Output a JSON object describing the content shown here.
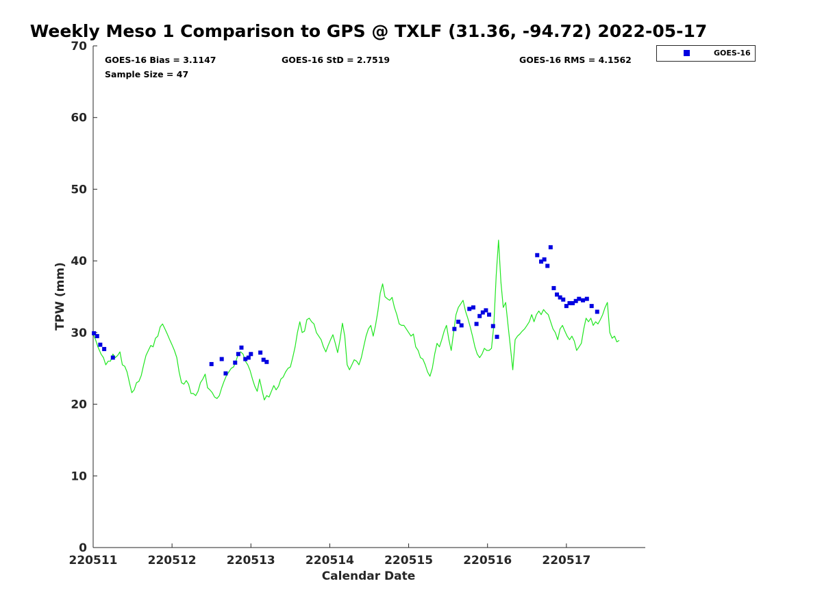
{
  "chart_data": {
    "type": "scatter",
    "title": "Weekly Meso 1 Comparison to GPS @ TXLF (31.36, -94.72) 2022-05-17",
    "xlabel": "Calendar Date",
    "ylabel": "TPW (mm)",
    "xlim": [
      0,
      7
    ],
    "ylim": [
      0,
      70
    ],
    "x_ticks": [
      {
        "value": 0,
        "label": "220511"
      },
      {
        "value": 1,
        "label": "220512"
      },
      {
        "value": 2,
        "label": "220513"
      },
      {
        "value": 3,
        "label": "220514"
      },
      {
        "value": 4,
        "label": "220515"
      },
      {
        "value": 5,
        "label": "220516"
      },
      {
        "value": 6,
        "label": "220517"
      }
    ],
    "y_ticks": [
      0,
      10,
      20,
      30,
      40,
      50,
      60,
      70
    ],
    "stats": {
      "bias": "GOES-16 Bias = 3.1147",
      "std": "GOES-16 StD = 2.7519",
      "rms": "GOES-16 RMS = 4.1562",
      "sample": "Sample Size = 47"
    },
    "legend": {
      "location": "top-right outside",
      "entries": [
        {
          "name": "GOES-16",
          "color": "#0000e0",
          "marker": "square"
        }
      ]
    },
    "colors": {
      "gps_line": "#1ee61e",
      "goes_marker": "#0000e0"
    },
    "series": [
      {
        "name": "GPS",
        "kind": "line",
        "points": [
          [
            0.0,
            29.8
          ],
          [
            0.03,
            29.0
          ],
          [
            0.06,
            28.0
          ],
          [
            0.1,
            27.0
          ],
          [
            0.13,
            26.5
          ],
          [
            0.16,
            25.5
          ],
          [
            0.19,
            26.0
          ],
          [
            0.22,
            26.0
          ],
          [
            0.25,
            27.0
          ],
          [
            0.28,
            26.5
          ],
          [
            0.31,
            26.8
          ],
          [
            0.34,
            27.3
          ],
          [
            0.37,
            25.5
          ],
          [
            0.4,
            25.3
          ],
          [
            0.43,
            24.5
          ],
          [
            0.46,
            23.0
          ],
          [
            0.49,
            21.6
          ],
          [
            0.52,
            22.0
          ],
          [
            0.55,
            23.0
          ],
          [
            0.58,
            23.2
          ],
          [
            0.61,
            24.0
          ],
          [
            0.64,
            25.5
          ],
          [
            0.67,
            26.8
          ],
          [
            0.7,
            27.5
          ],
          [
            0.73,
            28.2
          ],
          [
            0.76,
            28.0
          ],
          [
            0.79,
            29.2
          ],
          [
            0.82,
            29.5
          ],
          [
            0.85,
            30.8
          ],
          [
            0.88,
            31.2
          ],
          [
            0.91,
            30.5
          ],
          [
            0.94,
            29.8
          ],
          [
            0.97,
            29.0
          ],
          [
            1.0,
            28.3
          ],
          [
            1.03,
            27.5
          ],
          [
            1.06,
            26.5
          ],
          [
            1.09,
            24.5
          ],
          [
            1.12,
            23.0
          ],
          [
            1.15,
            22.8
          ],
          [
            1.18,
            23.3
          ],
          [
            1.21,
            22.8
          ],
          [
            1.24,
            21.5
          ],
          [
            1.27,
            21.5
          ],
          [
            1.3,
            21.2
          ],
          [
            1.33,
            21.8
          ],
          [
            1.36,
            23.0
          ],
          [
            1.39,
            23.5
          ],
          [
            1.42,
            24.2
          ],
          [
            1.45,
            22.3
          ],
          [
            1.48,
            22.0
          ],
          [
            1.51,
            21.6
          ],
          [
            1.54,
            21.0
          ],
          [
            1.57,
            20.8
          ],
          [
            1.6,
            21.2
          ],
          [
            1.63,
            22.3
          ],
          [
            1.66,
            23.2
          ],
          [
            1.69,
            24.0
          ],
          [
            1.72,
            24.5
          ],
          [
            1.75,
            25.0
          ],
          [
            1.78,
            25.2
          ],
          [
            1.81,
            26.0
          ],
          [
            1.84,
            27.0
          ],
          [
            1.87,
            27.3
          ],
          [
            1.9,
            27.0
          ],
          [
            1.93,
            26.0
          ],
          [
            1.96,
            25.5
          ],
          [
            1.99,
            24.7
          ],
          [
            2.02,
            23.5
          ],
          [
            2.05,
            22.5
          ],
          [
            2.08,
            21.8
          ],
          [
            2.11,
            23.5
          ],
          [
            2.14,
            22.0
          ],
          [
            2.17,
            20.6
          ],
          [
            2.2,
            21.2
          ],
          [
            2.23,
            21.0
          ],
          [
            2.26,
            21.8
          ],
          [
            2.29,
            22.6
          ],
          [
            2.32,
            22.0
          ],
          [
            2.35,
            22.5
          ],
          [
            2.38,
            23.5
          ],
          [
            2.41,
            23.8
          ],
          [
            2.44,
            24.5
          ],
          [
            2.47,
            25.0
          ],
          [
            2.5,
            25.2
          ],
          [
            2.53,
            26.5
          ],
          [
            2.56,
            28.0
          ],
          [
            2.59,
            30.0
          ],
          [
            2.62,
            31.5
          ],
          [
            2.65,
            30.0
          ],
          [
            2.68,
            30.2
          ],
          [
            2.71,
            31.8
          ],
          [
            2.74,
            32.0
          ],
          [
            2.77,
            31.5
          ],
          [
            2.8,
            31.2
          ],
          [
            2.83,
            30.0
          ],
          [
            2.86,
            29.5
          ],
          [
            2.89,
            29.0
          ],
          [
            2.92,
            28.0
          ],
          [
            2.95,
            27.3
          ],
          [
            2.98,
            28.2
          ],
          [
            3.01,
            29.0
          ],
          [
            3.04,
            29.7
          ],
          [
            3.07,
            28.5
          ],
          [
            3.1,
            27.2
          ],
          [
            3.13,
            29.0
          ],
          [
            3.16,
            31.3
          ],
          [
            3.19,
            29.5
          ],
          [
            3.22,
            25.5
          ],
          [
            3.25,
            24.8
          ],
          [
            3.28,
            25.5
          ],
          [
            3.31,
            26.2
          ],
          [
            3.34,
            26.0
          ],
          [
            3.37,
            25.5
          ],
          [
            3.4,
            26.5
          ],
          [
            3.43,
            28.0
          ],
          [
            3.46,
            29.5
          ],
          [
            3.49,
            30.5
          ],
          [
            3.52,
            31.0
          ],
          [
            3.55,
            29.5
          ],
          [
            3.58,
            31.0
          ],
          [
            3.61,
            33.0
          ],
          [
            3.64,
            35.5
          ],
          [
            3.67,
            36.8
          ],
          [
            3.7,
            35.0
          ],
          [
            3.73,
            34.7
          ],
          [
            3.76,
            34.5
          ],
          [
            3.79,
            34.9
          ],
          [
            3.82,
            33.5
          ],
          [
            3.85,
            32.5
          ],
          [
            3.88,
            31.2
          ],
          [
            3.91,
            31.0
          ],
          [
            3.94,
            31.0
          ],
          [
            3.97,
            30.5
          ],
          [
            4.0,
            30.0
          ],
          [
            4.03,
            29.5
          ],
          [
            4.06,
            29.8
          ],
          [
            4.09,
            28.0
          ],
          [
            4.12,
            27.5
          ],
          [
            4.15,
            26.5
          ],
          [
            4.18,
            26.3
          ],
          [
            4.21,
            25.5
          ],
          [
            4.24,
            24.5
          ],
          [
            4.27,
            23.9
          ],
          [
            4.3,
            25.0
          ],
          [
            4.33,
            27.0
          ],
          [
            4.36,
            28.5
          ],
          [
            4.39,
            28.0
          ],
          [
            4.42,
            29.0
          ],
          [
            4.45,
            30.2
          ],
          [
            4.48,
            31.0
          ],
          [
            4.51,
            29.0
          ],
          [
            4.54,
            27.5
          ],
          [
            4.57,
            30.0
          ],
          [
            4.6,
            32.5
          ],
          [
            4.63,
            33.5
          ],
          [
            4.66,
            34.0
          ],
          [
            4.69,
            34.5
          ],
          [
            4.72,
            33.0
          ],
          [
            4.75,
            32.0
          ],
          [
            4.78,
            30.8
          ],
          [
            4.81,
            29.5
          ],
          [
            4.84,
            28.0
          ],
          [
            4.87,
            27.0
          ],
          [
            4.9,
            26.5
          ],
          [
            4.93,
            27.0
          ],
          [
            4.96,
            27.8
          ],
          [
            4.99,
            27.5
          ],
          [
            5.02,
            27.5
          ],
          [
            5.05,
            27.8
          ],
          [
            5.08,
            31.0
          ],
          [
            5.11,
            38.0
          ],
          [
            5.14,
            42.9
          ],
          [
            5.17,
            37.0
          ],
          [
            5.2,
            33.5
          ],
          [
            5.23,
            34.2
          ],
          [
            5.26,
            31.0
          ],
          [
            5.29,
            28.0
          ],
          [
            5.32,
            24.8
          ],
          [
            5.35,
            29.0
          ],
          [
            5.38,
            29.5
          ],
          [
            5.41,
            29.8
          ],
          [
            5.44,
            30.2
          ],
          [
            5.47,
            30.5
          ],
          [
            5.5,
            31.0
          ],
          [
            5.53,
            31.5
          ],
          [
            5.56,
            32.5
          ],
          [
            5.59,
            31.5
          ],
          [
            5.62,
            32.5
          ],
          [
            5.65,
            33.0
          ],
          [
            5.68,
            32.5
          ],
          [
            5.71,
            33.2
          ],
          [
            5.74,
            32.8
          ],
          [
            5.77,
            32.5
          ],
          [
            5.8,
            31.5
          ],
          [
            5.83,
            30.5
          ],
          [
            5.86,
            30.0
          ],
          [
            5.89,
            29.0
          ],
          [
            5.92,
            30.5
          ],
          [
            5.95,
            31.0
          ],
          [
            5.98,
            30.2
          ],
          [
            6.01,
            29.5
          ],
          [
            6.04,
            29.0
          ],
          [
            6.07,
            29.5
          ],
          [
            6.1,
            28.8
          ],
          [
            6.13,
            27.5
          ],
          [
            6.16,
            28.0
          ],
          [
            6.19,
            28.5
          ],
          [
            6.22,
            30.5
          ],
          [
            6.25,
            32.0
          ],
          [
            6.28,
            31.5
          ],
          [
            6.31,
            32.0
          ],
          [
            6.34,
            31.0
          ],
          [
            6.37,
            31.5
          ],
          [
            6.4,
            31.2
          ],
          [
            6.43,
            31.8
          ],
          [
            6.46,
            32.5
          ],
          [
            6.49,
            33.5
          ],
          [
            6.52,
            34.2
          ],
          [
            6.55,
            30.0
          ],
          [
            6.58,
            29.2
          ],
          [
            6.61,
            29.5
          ],
          [
            6.64,
            28.7
          ],
          [
            6.67,
            28.9
          ]
        ]
      },
      {
        "name": "GOES-16",
        "kind": "markers",
        "points": [
          [
            0.01,
            29.9
          ],
          [
            0.05,
            29.5
          ],
          [
            0.09,
            28.3
          ],
          [
            0.14,
            27.7
          ],
          [
            0.25,
            26.5
          ],
          [
            1.5,
            25.6
          ],
          [
            1.63,
            26.3
          ],
          [
            1.68,
            24.3
          ],
          [
            1.8,
            25.8
          ],
          [
            1.84,
            27.0
          ],
          [
            1.88,
            27.9
          ],
          [
            1.93,
            26.3
          ],
          [
            1.97,
            26.5
          ],
          [
            2.0,
            27.0
          ],
          [
            2.12,
            27.2
          ],
          [
            2.16,
            26.2
          ],
          [
            2.2,
            25.9
          ],
          [
            4.58,
            30.5
          ],
          [
            4.63,
            31.5
          ],
          [
            4.67,
            31.0
          ],
          [
            4.77,
            33.3
          ],
          [
            4.82,
            33.5
          ],
          [
            4.86,
            31.2
          ],
          [
            4.9,
            32.3
          ],
          [
            4.94,
            32.8
          ],
          [
            4.98,
            33.1
          ],
          [
            5.02,
            32.5
          ],
          [
            5.07,
            30.9
          ],
          [
            5.12,
            29.4
          ],
          [
            5.63,
            40.8
          ],
          [
            5.68,
            39.9
          ],
          [
            5.72,
            40.2
          ],
          [
            5.76,
            39.3
          ],
          [
            5.8,
            41.9
          ],
          [
            5.84,
            36.2
          ],
          [
            5.88,
            35.3
          ],
          [
            5.92,
            34.9
          ],
          [
            5.96,
            34.6
          ],
          [
            6.0,
            33.7
          ],
          [
            6.04,
            34.1
          ],
          [
            6.08,
            34.1
          ],
          [
            6.12,
            34.4
          ],
          [
            6.16,
            34.7
          ],
          [
            6.21,
            34.5
          ],
          [
            6.26,
            34.7
          ],
          [
            6.32,
            33.7
          ],
          [
            6.39,
            32.9
          ]
        ]
      }
    ]
  }
}
